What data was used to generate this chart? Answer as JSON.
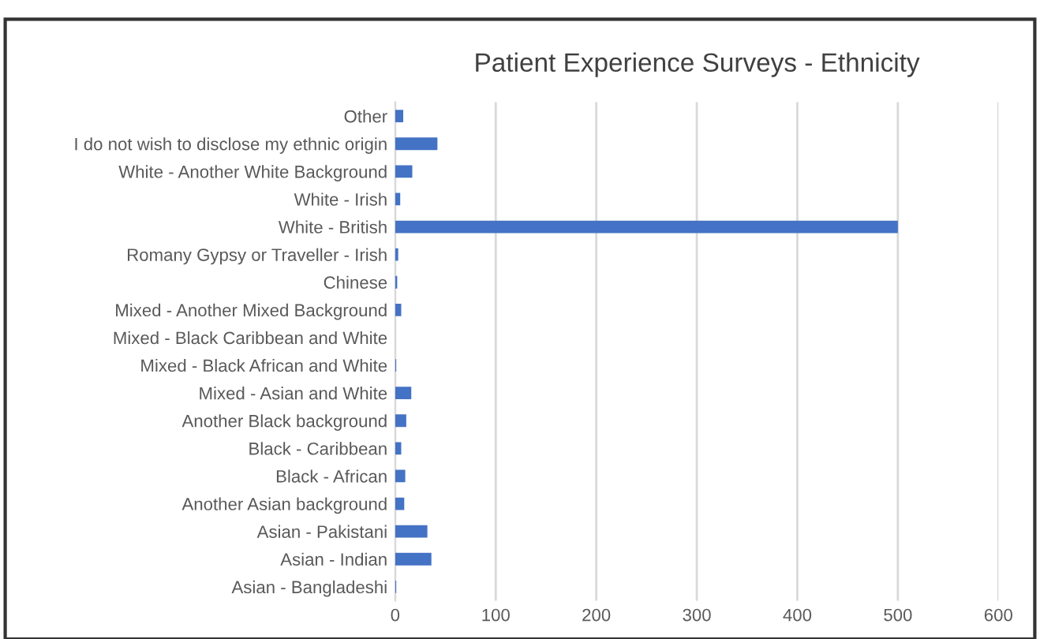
{
  "chart_data": {
    "type": "bar",
    "orientation": "horizontal",
    "title": "Patient Experience Surveys - Ethnicity",
    "categories": [
      "Other",
      "I do not wish to disclose my ethnic origin",
      "White - Another White Background",
      "White - Irish",
      "White - British",
      "Romany Gypsy or Traveller - Irish",
      "Chinese",
      "Mixed - Another Mixed Background",
      "Mixed - Black Caribbean and White",
      "Mixed - Black African and White",
      "Mixed - Asian and White",
      "Another Black background",
      "Black - Caribbean",
      "Black - African",
      "Another Asian background",
      "Asian - Pakistani",
      "Asian - Indian",
      "Asian - Bangladeshi"
    ],
    "values": [
      8,
      42,
      17,
      5,
      500,
      3,
      2,
      6,
      0,
      1,
      16,
      11,
      6,
      10,
      9,
      32,
      36,
      1
    ],
    "color": "#4472c4",
    "xlim": [
      0,
      600
    ],
    "xticks": [
      0,
      100,
      200,
      300,
      400,
      500,
      600
    ],
    "grid": "x"
  }
}
